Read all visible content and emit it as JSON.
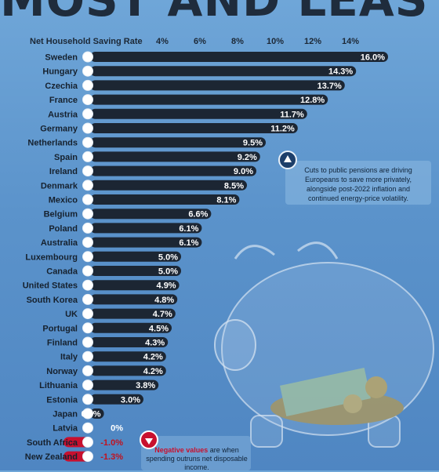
{
  "header": {
    "title": "MOST AND LEAST"
  },
  "note": {
    "text": "Cuts to public pensions are driving Europeans to save more privately, alongside post-2022 inflation and continued energy-price volatility."
  },
  "negative_note": {
    "title": "Negative values",
    "text": "are when spending outruns net disposable income."
  },
  "colors": {
    "background": "#5b93cb",
    "bar": "#1c2633",
    "negative": "#c8102e"
  },
  "icons": [
    "arrow-up-icon",
    "arrow-down-icon",
    "flag-icon",
    "piggy-bank-icon"
  ],
  "chart_data": {
    "type": "bar",
    "orientation": "horizontal",
    "xlabel": "Net Household Saving Rate",
    "ticks": [
      "4%",
      "6%",
      "8%",
      "10%",
      "12%",
      "14%"
    ],
    "tick_values": [
      4,
      6,
      8,
      10,
      12,
      14
    ],
    "grid": false,
    "categories": [
      "Sweden",
      "Hungary",
      "Czechia",
      "France",
      "Austria",
      "Germany",
      "Netherlands",
      "Spain",
      "Ireland",
      "Denmark",
      "Mexico",
      "Belgium",
      "Poland",
      "Australia",
      "Luxembourg",
      "Canada",
      "United States",
      "South Korea",
      "UK",
      "Portugal",
      "Finland",
      "Italy",
      "Norway",
      "Lithuania",
      "Estonia",
      "Japan",
      "Latvia",
      "South Africa",
      "New Zealand"
    ],
    "values": [
      16.0,
      14.3,
      13.7,
      12.8,
      11.7,
      11.2,
      9.5,
      9.2,
      9.0,
      8.5,
      8.1,
      6.6,
      6.1,
      6.1,
      5.0,
      5.0,
      4.9,
      4.8,
      4.7,
      4.5,
      4.3,
      4.2,
      4.2,
      3.8,
      3.0,
      0.9,
      0,
      -1.0,
      -1.3
    ],
    "value_labels": [
      "16.0%",
      "14.3%",
      "13.7%",
      "12.8%",
      "11.7%",
      "11.2%",
      "9.5%",
      "9.2%",
      "9.0%",
      "8.5%",
      "8.1%",
      "6.6%",
      "6.1%",
      "6.1%",
      "5.0%",
      "5.0%",
      "4.9%",
      "4.8%",
      "4.7%",
      "4.5%",
      "4.3%",
      "4.2%",
      "4.2%",
      "3.8%",
      "3.0%",
      "0.9%",
      "0%",
      "-1.0%",
      "-1.3%"
    ]
  }
}
